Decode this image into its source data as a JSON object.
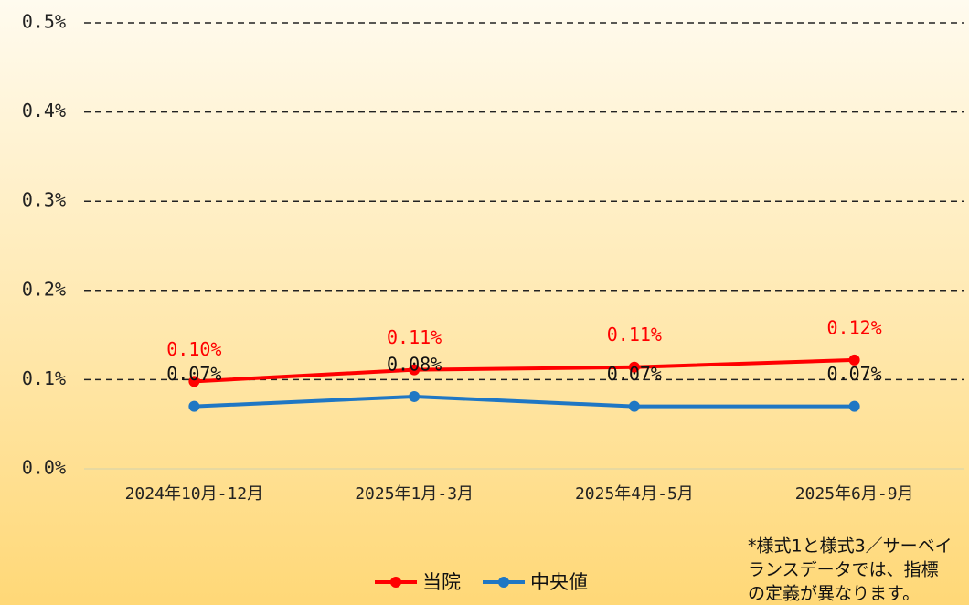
{
  "chart_data": {
    "type": "line",
    "categories": [
      "2024年10月-12月",
      "2025年1月-3月",
      "2025年4月-5月",
      "2025年6月-9月"
    ],
    "series": [
      {
        "name": "当院",
        "color": "#ff0000",
        "values": [
          0.098,
          0.111,
          0.114,
          0.122
        ],
        "value_labels": [
          "0.10%",
          "0.11%",
          "0.11%",
          "0.12%"
        ]
      },
      {
        "name": "中央値",
        "color": "#1f77c4",
        "values": [
          0.07,
          0.081,
          0.07,
          0.07
        ],
        "value_labels": [
          "0.07%",
          "0.08%",
          "0.07%",
          "0.07%"
        ]
      }
    ],
    "ylim": [
      0,
      0.5
    ],
    "yticks": [
      {
        "value": 0,
        "label": "0.0%"
      },
      {
        "value": 0.1,
        "label": "0.1%"
      },
      {
        "value": 0.2,
        "label": "0.2%"
      },
      {
        "value": 0.3,
        "label": "0.3%"
      },
      {
        "value": 0.4,
        "label": "0.4%"
      },
      {
        "value": 0.5,
        "label": "0.5%"
      }
    ],
    "grid": true,
    "legend": "bottom",
    "note": [
      "*様式1と様式3／サーベイ",
      "ランスデータでは、指標",
      "の定義が異なります。"
    ]
  }
}
